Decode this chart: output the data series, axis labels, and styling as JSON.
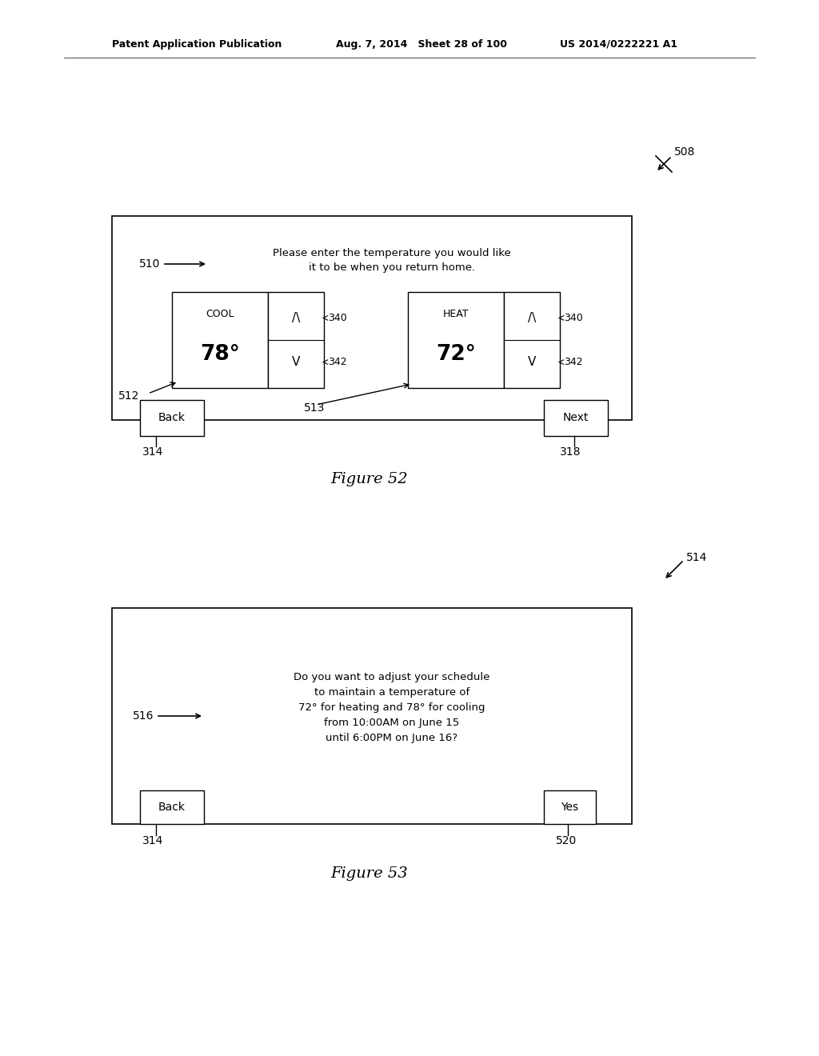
{
  "bg_color": "#ffffff",
  "header_left": "Patent Application Publication",
  "header_mid": "Aug. 7, 2014   Sheet 28 of 100",
  "header_right": "US 2014/0222221 A1",
  "fig52_label": "508",
  "fig52_caption": "Figure 52",
  "fig52_prompt": "Please enter the temperature you would like\nit to be when you return home.",
  "fig52_prompt_label": "510",
  "cool_label": "COOL",
  "cool_temp": "78°",
  "heat_label": "HEAT",
  "heat_temp": "72°",
  "label_340a": "340",
  "label_340b": "340",
  "label_342a": "342",
  "label_342b": "342",
  "label_512": "512",
  "label_513": "513",
  "label_314a": "314",
  "label_318": "318",
  "fig53_label": "514",
  "fig53_caption": "Figure 53",
  "fig53_text": "Do you want to adjust your schedule\nto maintain a temperature of\n72° for heating and 78° for cooling\nfrom 10:00AM on June 15\nuntil 6:00PM on June 16?",
  "label_516": "516",
  "label_314b": "314",
  "label_520": "520"
}
